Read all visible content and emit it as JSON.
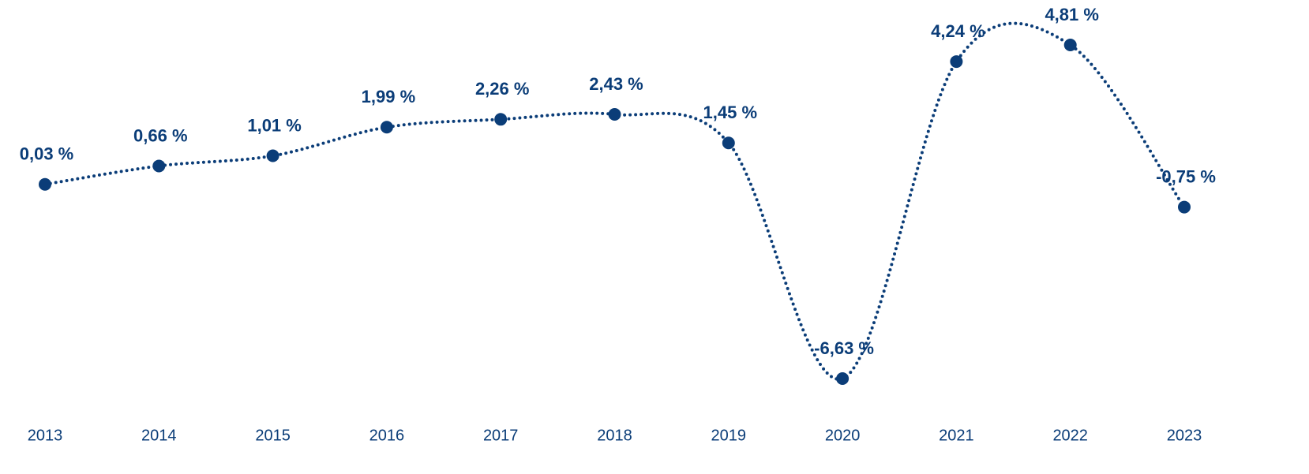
{
  "chart_data": {
    "type": "line",
    "categories": [
      "2013",
      "2014",
      "2015",
      "2016",
      "2017",
      "2018",
      "2019",
      "2020",
      "2021",
      "2022",
      "2023"
    ],
    "values": [
      0.03,
      0.66,
      1.01,
      1.99,
      2.26,
      2.43,
      1.45,
      -6.63,
      4.24,
      4.81,
      -0.75
    ],
    "value_labels": [
      "0,03 %",
      "0,66 %",
      "1,01 %",
      "1,99 %",
      "2,26 %",
      "2,43 %",
      "1,45 %",
      "-6,63 %",
      "4,24 %",
      "4,81 %",
      "-0,75 %"
    ],
    "color": "#0b3d78"
  }
}
